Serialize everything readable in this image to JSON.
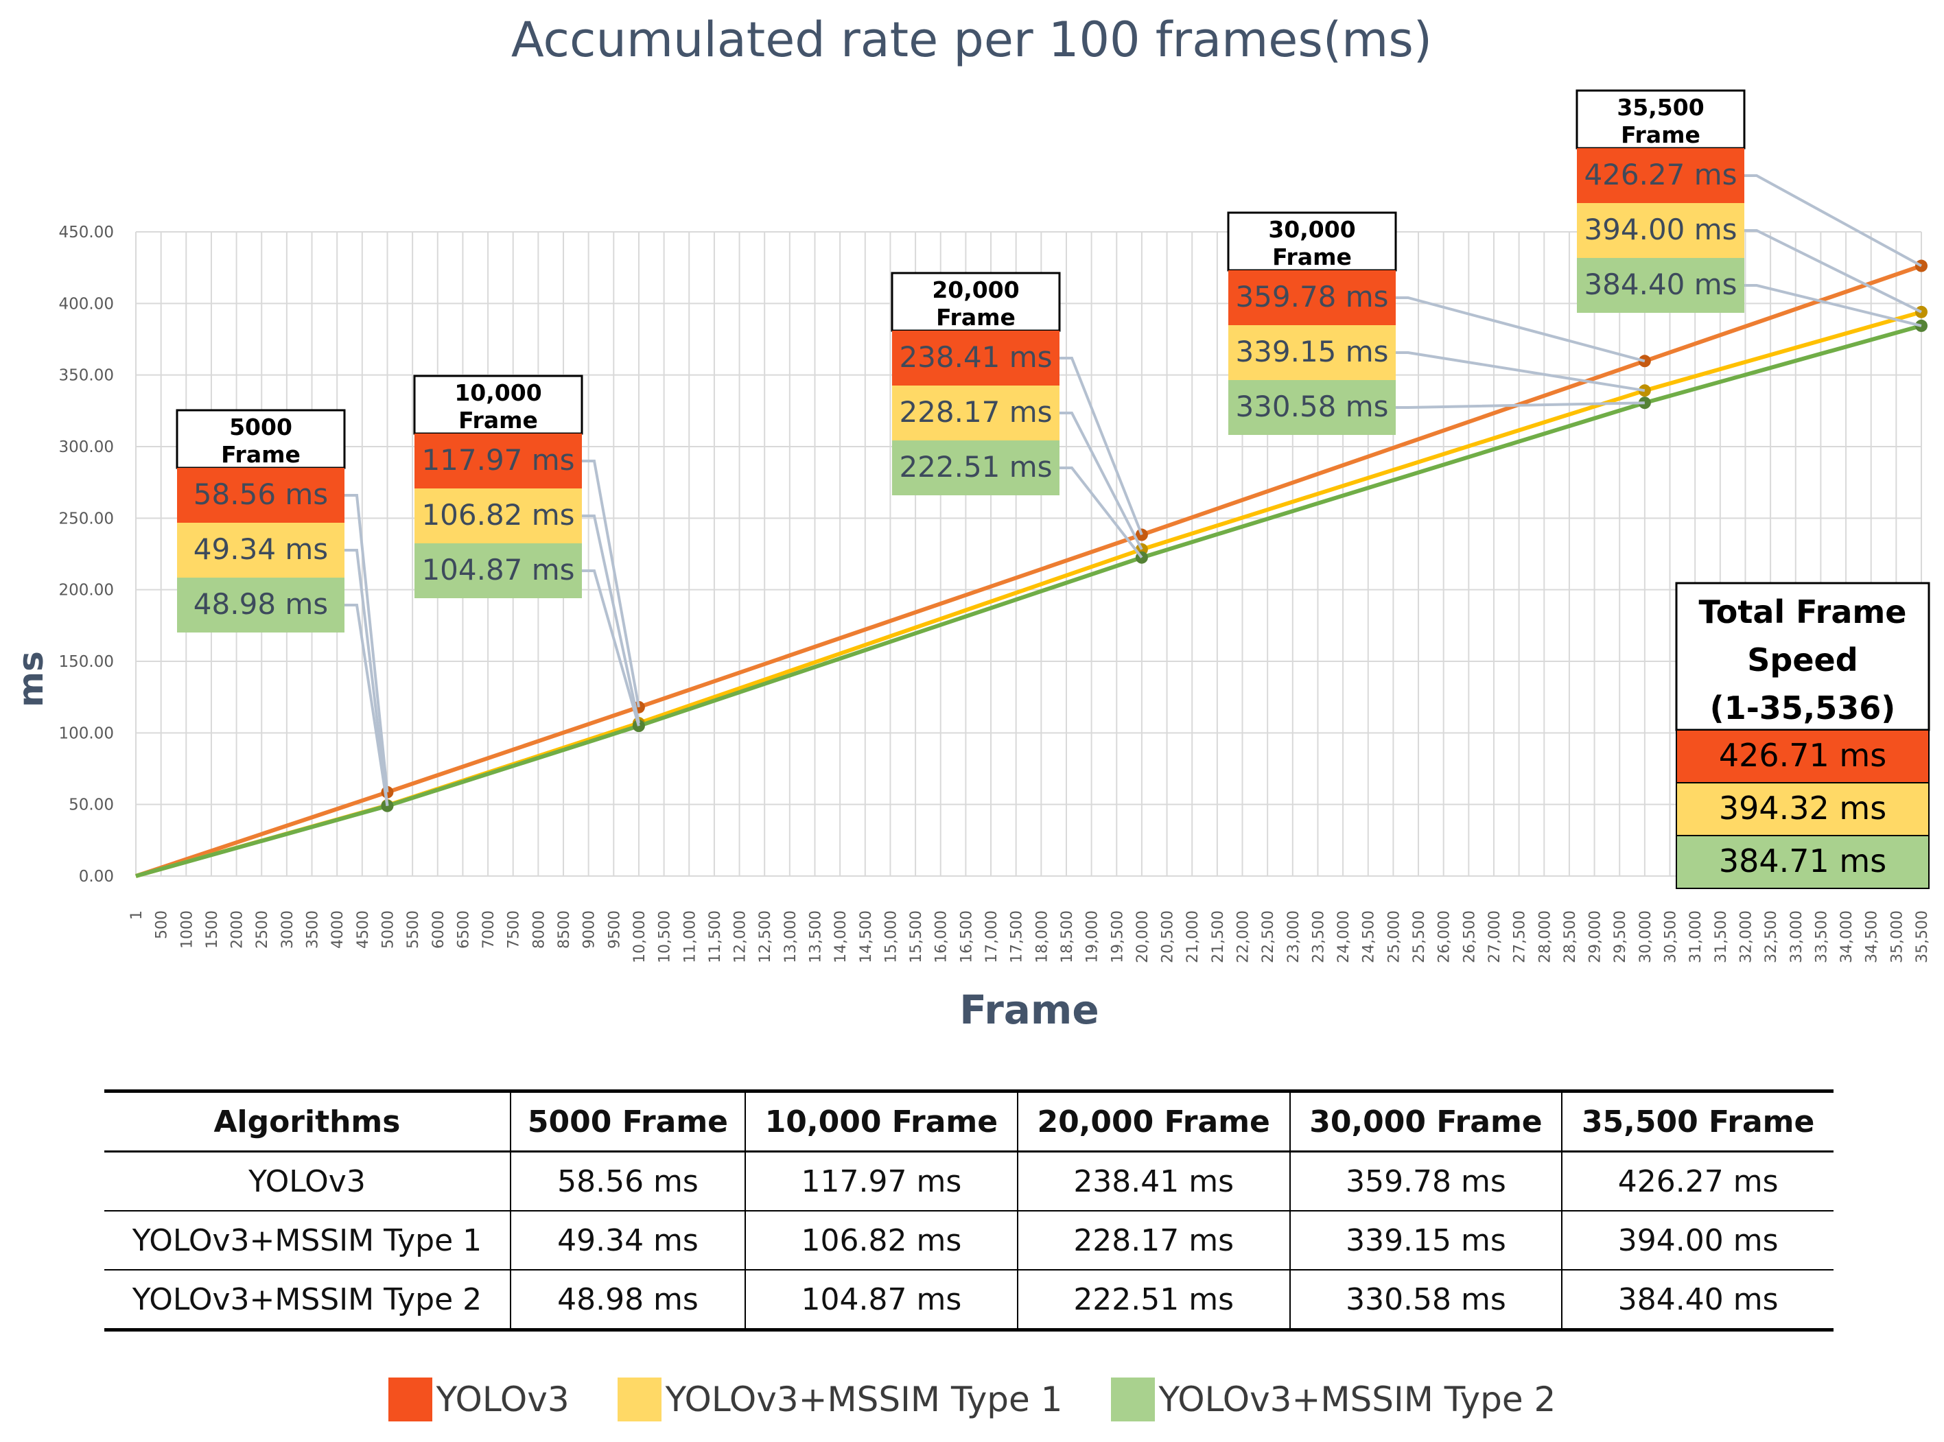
{
  "colors": {
    "yolo": "#f4511e",
    "type1": "#ffd966",
    "type2": "#a9d18e",
    "line_yolo": "#ed7d31",
    "line_type1": "#ffc000",
    "line_type2": "#70ad47",
    "grid": "#d9d9d9",
    "leader": "#b4c0d0",
    "title": "#44546a"
  },
  "chart_data": {
    "type": "line",
    "title": "Accumulated rate per 100 frames(ms)",
    "xlabel": "Frame",
    "ylabel": "ms",
    "ylim": [
      0,
      450
    ],
    "xlim": [
      1,
      35500
    ],
    "y_ticks": [
      "0.00",
      "50.00",
      "100.00",
      "150.00",
      "200.00",
      "250.00",
      "300.00",
      "350.00",
      "400.00",
      "450.00"
    ],
    "x_tick_labels": [
      "1",
      "500",
      "1000",
      "1500",
      "2000",
      "2500",
      "3000",
      "3500",
      "4000",
      "4500",
      "5000",
      "5500",
      "6000",
      "6500",
      "7000",
      "7500",
      "8000",
      "8500",
      "9000",
      "9500",
      "10,000",
      "10,500",
      "11,000",
      "11,500",
      "12,000",
      "12,500",
      "13,000",
      "13,500",
      "14,000",
      "14,500",
      "15,000",
      "15,500",
      "16,000",
      "16,500",
      "17,000",
      "17,500",
      "18,000",
      "18,500",
      "19,000",
      "19,500",
      "20,000",
      "20,500",
      "21,000",
      "21,500",
      "22,000",
      "22,500",
      "23,000",
      "23,500",
      "24,000",
      "24,500",
      "25,000",
      "25,500",
      "26,000",
      "26,500",
      "27,000",
      "27,500",
      "28,000",
      "28,500",
      "29,000",
      "29,500",
      "30,000",
      "30,500",
      "31,000",
      "31,500",
      "32,000",
      "32,500",
      "33,000",
      "33,500",
      "34,000",
      "34,500",
      "35,000",
      "35,500"
    ],
    "x": [
      1,
      5000,
      10000,
      20000,
      30000,
      35500
    ],
    "series": [
      {
        "name": "YOLOv3",
        "values": [
          0,
          58.56,
          117.97,
          238.41,
          359.78,
          426.27
        ]
      },
      {
        "name": "YOLOv3+MSSIM Type 1",
        "values": [
          0,
          49.34,
          106.82,
          228.17,
          339.15,
          394.0
        ]
      },
      {
        "name": "YOLOv3+MSSIM Type 2",
        "values": [
          0,
          48.98,
          104.87,
          222.51,
          330.58,
          384.4
        ]
      }
    ],
    "callouts": [
      {
        "frame": 5000,
        "title_line1": "5000",
        "title_line2": "Frame",
        "labels": [
          "58.56 ms",
          "49.34 ms",
          "48.98 ms"
        ]
      },
      {
        "frame": 10000,
        "title_line1": "10,000",
        "title_line2": "Frame",
        "labels": [
          "117.97 ms",
          "106.82 ms",
          "104.87 ms"
        ]
      },
      {
        "frame": 20000,
        "title_line1": "20,000",
        "title_line2": "Frame",
        "labels": [
          "238.41 ms",
          "228.17 ms",
          "222.51 ms"
        ]
      },
      {
        "frame": 30000,
        "title_line1": "30,000",
        "title_line2": "Frame",
        "labels": [
          "359.78 ms",
          "339.15 ms",
          "330.58 ms"
        ]
      },
      {
        "frame": 35500,
        "title_line1": "35,500",
        "title_line2": "Frame",
        "labels": [
          "426.27 ms",
          "394.00 ms",
          "384.40 ms"
        ]
      }
    ],
    "total_box": {
      "title_lines": [
        "Total Frame",
        "Speed",
        "(1-35,536)"
      ],
      "values": [
        "426.71 ms",
        "394.32 ms",
        "384.71 ms"
      ]
    }
  },
  "table": {
    "headers": [
      "Algorithms",
      "5000 Frame",
      "10,000 Frame",
      "20,000 Frame",
      "30,000 Frame",
      "35,500 Frame"
    ],
    "rows": [
      [
        "YOLOv3",
        "58.56 ms",
        "117.97 ms",
        "238.41 ms",
        "359.78 ms",
        "426.27 ms"
      ],
      [
        "YOLOv3+MSSIM Type 1",
        "49.34 ms",
        "106.82 ms",
        "228.17 ms",
        "339.15 ms",
        "394.00 ms"
      ],
      [
        "YOLOv3+MSSIM Type 2",
        "48.98 ms",
        "104.87 ms",
        "222.51 ms",
        "330.58 ms",
        "384.40 ms"
      ]
    ]
  },
  "legend": [
    "YOLOv3",
    "YOLOv3+MSSIM Type 1",
    "YOLOv3+MSSIM Type 2"
  ]
}
